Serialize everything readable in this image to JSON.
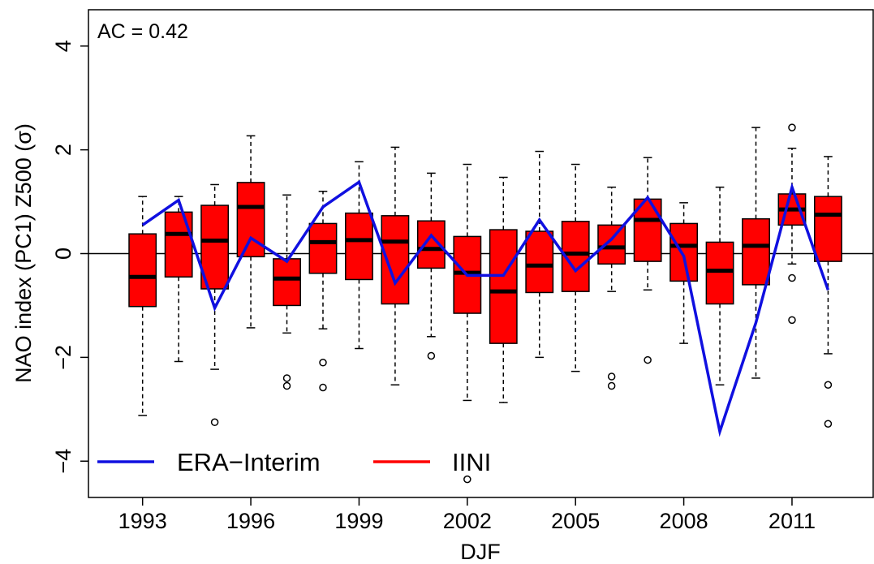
{
  "chart_data": {
    "type": "box",
    "annotation": "AC = 0.42",
    "xlabel": "DJF",
    "ylabel": "NAO index (PC1) Z500 (σ)",
    "xlim": [
      1991.5,
      2013.25
    ],
    "ylim": [
      -4.7,
      4.7
    ],
    "x_tick_labels": [
      "1993",
      "1996",
      "1999",
      "2002",
      "2005",
      "2008",
      "2011"
    ],
    "y_tick_labels": [
      "−4",
      "−2",
      "0",
      "2",
      "4"
    ],
    "legend": {
      "placement": "bottom-left",
      "entries": [
        "ERA−Interim",
        "IINI"
      ]
    },
    "colors": {
      "box_fill": "#ff0000",
      "line": "#1010e0",
      "border": "#000000"
    },
    "boxes": [
      {
        "year": 1993,
        "whisker_low": -3.12,
        "q1": -1.02,
        "median": -0.45,
        "q3": 0.38,
        "whisker_high": 1.1,
        "outliers": []
      },
      {
        "year": 1994,
        "whisker_low": -2.08,
        "q1": -0.45,
        "median": 0.38,
        "q3": 0.8,
        "whisker_high": 1.1,
        "outliers": []
      },
      {
        "year": 1995,
        "whisker_low": -2.23,
        "q1": -0.68,
        "median": 0.25,
        "q3": 0.93,
        "whisker_high": 1.33,
        "outliers": [
          -3.25
        ]
      },
      {
        "year": 1996,
        "whisker_low": -1.43,
        "q1": -0.06,
        "median": 0.9,
        "q3": 1.37,
        "whisker_high": 2.27,
        "outliers": []
      },
      {
        "year": 1997,
        "whisker_low": -1.53,
        "q1": -1.0,
        "median": -0.48,
        "q3": -0.1,
        "whisker_high": 1.13,
        "outliers": [
          -2.4,
          -2.55
        ]
      },
      {
        "year": 1998,
        "whisker_low": -1.45,
        "q1": -0.38,
        "median": 0.22,
        "q3": 0.58,
        "whisker_high": 1.2,
        "outliers": [
          -2.1,
          -2.58
        ]
      },
      {
        "year": 1999,
        "whisker_low": -1.83,
        "q1": -0.5,
        "median": 0.26,
        "q3": 0.78,
        "whisker_high": 1.77,
        "outliers": []
      },
      {
        "year": 2000,
        "whisker_low": -2.53,
        "q1": -0.97,
        "median": 0.23,
        "q3": 0.73,
        "whisker_high": 2.05,
        "outliers": []
      },
      {
        "year": 2001,
        "whisker_low": -1.6,
        "q1": -0.28,
        "median": 0.09,
        "q3": 0.63,
        "whisker_high": 1.55,
        "outliers": [
          -1.97
        ]
      },
      {
        "year": 2002,
        "whisker_low": -2.83,
        "q1": -1.15,
        "median": -0.37,
        "q3": 0.33,
        "whisker_high": 1.72,
        "outliers": [
          -4.35
        ]
      },
      {
        "year": 2003,
        "whisker_low": -2.87,
        "q1": -1.73,
        "median": -0.73,
        "q3": 0.46,
        "whisker_high": 1.47,
        "outliers": []
      },
      {
        "year": 2004,
        "whisker_low": -2.0,
        "q1": -0.75,
        "median": -0.23,
        "q3": 0.43,
        "whisker_high": 1.97,
        "outliers": []
      },
      {
        "year": 2005,
        "whisker_low": -2.27,
        "q1": -0.73,
        "median": 0.0,
        "q3": 0.62,
        "whisker_high": 1.72,
        "outliers": []
      },
      {
        "year": 2006,
        "whisker_low": -0.73,
        "q1": -0.2,
        "median": 0.12,
        "q3": 0.55,
        "whisker_high": 1.28,
        "outliers": [
          -2.37,
          -2.55
        ]
      },
      {
        "year": 2007,
        "whisker_low": -0.7,
        "q1": -0.15,
        "median": 0.65,
        "q3": 1.05,
        "whisker_high": 1.85,
        "outliers": [
          -2.05
        ]
      },
      {
        "year": 2008,
        "whisker_low": -1.73,
        "q1": -0.53,
        "median": 0.15,
        "q3": 0.58,
        "whisker_high": 0.98,
        "outliers": []
      },
      {
        "year": 2009,
        "whisker_low": -2.53,
        "q1": -0.97,
        "median": -0.33,
        "q3": 0.22,
        "whisker_high": 1.28,
        "outliers": []
      },
      {
        "year": 2010,
        "whisker_low": -2.4,
        "q1": -0.6,
        "median": 0.15,
        "q3": 0.67,
        "whisker_high": 2.43,
        "outliers": []
      },
      {
        "year": 2011,
        "whisker_low": -0.2,
        "q1": 0.55,
        "median": 0.85,
        "q3": 1.15,
        "whisker_high": 2.03,
        "outliers": [
          2.43,
          -0.47,
          -1.28
        ]
      },
      {
        "year": 2012,
        "whisker_low": -1.93,
        "q1": -0.15,
        "median": 0.75,
        "q3": 1.1,
        "whisker_high": 1.87,
        "outliers": [
          -2.53,
          -3.28
        ]
      }
    ],
    "series": [
      {
        "name": "ERA−Interim",
        "x": [
          1993,
          1994,
          1995,
          1996,
          1997,
          1998,
          1999,
          2000,
          2001,
          2002,
          2003,
          2004,
          2005,
          2006,
          2007,
          2008,
          2009,
          2010,
          2011,
          2012
        ],
        "values": [
          0.55,
          1.03,
          -1.05,
          0.3,
          -0.15,
          0.9,
          1.38,
          -0.57,
          0.35,
          -0.42,
          -0.42,
          0.65,
          -0.33,
          0.28,
          1.08,
          -0.05,
          -3.43,
          -1.33,
          1.28,
          -0.7
        ]
      }
    ]
  }
}
